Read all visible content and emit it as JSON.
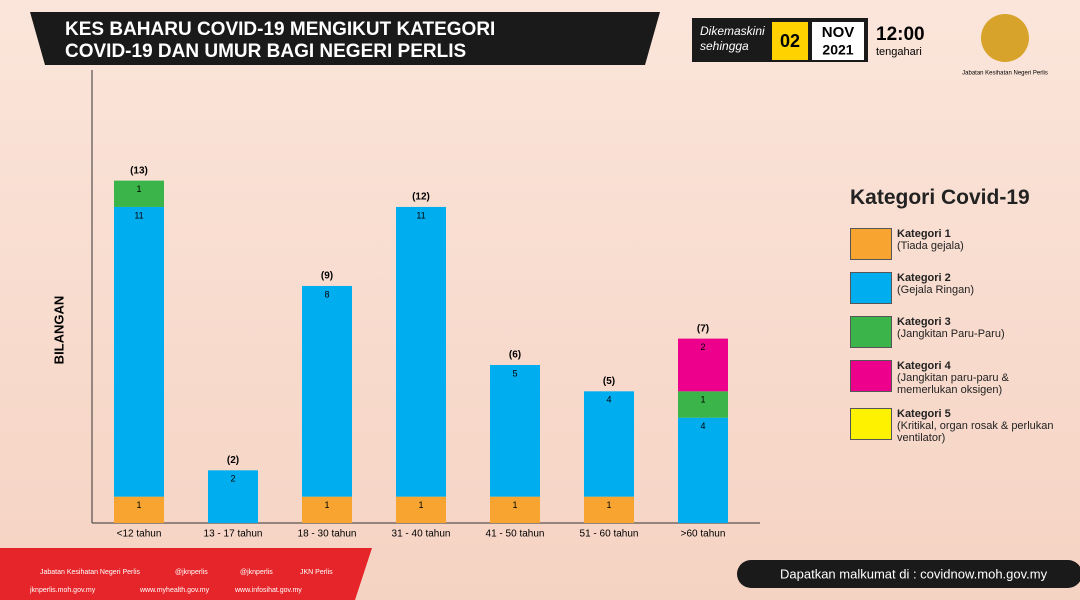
{
  "header": {
    "title_line1": "KES BAHARU COVID-19 MENGIKUT KATEGORI",
    "title_line2": "COVID-19 DAN UMUR BAGI NEGERI PERLIS",
    "updated_label1": "Dikemaskini",
    "updated_label2": "sehingga",
    "day": "02",
    "month": "NOV",
    "year": "2021",
    "time": "12:00",
    "time_period": "tengahari",
    "agency": "Jabatan Kesihatan Negeri Perlis"
  },
  "chart_data": {
    "type": "stacked_bar",
    "y_label": "BILANGAN",
    "legend_title": "Kategori Covid-19",
    "categories": [
      "<12 tahun",
      "13 - 17 tahun",
      "18 - 30 tahun",
      "31 - 40 tahun",
      "41 - 50 tahun",
      "51 - 60 tahun",
      ">60 tahun"
    ],
    "series": [
      {
        "name": "Kategori 1",
        "description": "(Tiada gejala)",
        "color": "#f7a530",
        "values": [
          1,
          null,
          1,
          1,
          1,
          1,
          null
        ]
      },
      {
        "name": "Kategori 2",
        "description": "(Gejala Ringan)",
        "color": "#00adef",
        "values": [
          11,
          2,
          8,
          11,
          5,
          4,
          4
        ]
      },
      {
        "name": "Kategori 3",
        "description": "(Jangkitan Paru-Paru)",
        "color": "#3bb54a",
        "values": [
          1,
          null,
          null,
          null,
          null,
          null,
          1
        ]
      },
      {
        "name": "Kategori 4",
        "description": "(Jangkitan paru-paru & memerlukan oksigen)",
        "color": "#ec008c",
        "values": [
          null,
          null,
          null,
          null,
          null,
          null,
          2
        ]
      },
      {
        "name": "Kategori 5",
        "description": "(Kritikal, organ rosak & perlukan ventilator)",
        "color": "#fff200",
        "values": [
          null,
          null,
          null,
          null,
          null,
          null,
          null
        ]
      }
    ],
    "totals": {
      "values": [
        13,
        2,
        9,
        12,
        6,
        5,
        7
      ],
      "value_labels": [
        "(13)",
        "(2)",
        "(9)",
        "(12)",
        "(6)",
        "(5)",
        "(7)"
      ]
    },
    "ylim": [
      0,
      17.2
    ]
  },
  "footer": {
    "facebook": "Jabatan Kesihatan Negeri Perlis",
    "twitter": "@jknperlis",
    "instagram": "@jknperlis",
    "youtube": "JKN Perlis",
    "site1": "jknperlis.moh.gov.my",
    "site2": "www.myhealth.gov.my",
    "site3": "www.infosihat.gov.my",
    "info": "Dapatkan malkumat di : covidnow.moh.gov.my"
  }
}
